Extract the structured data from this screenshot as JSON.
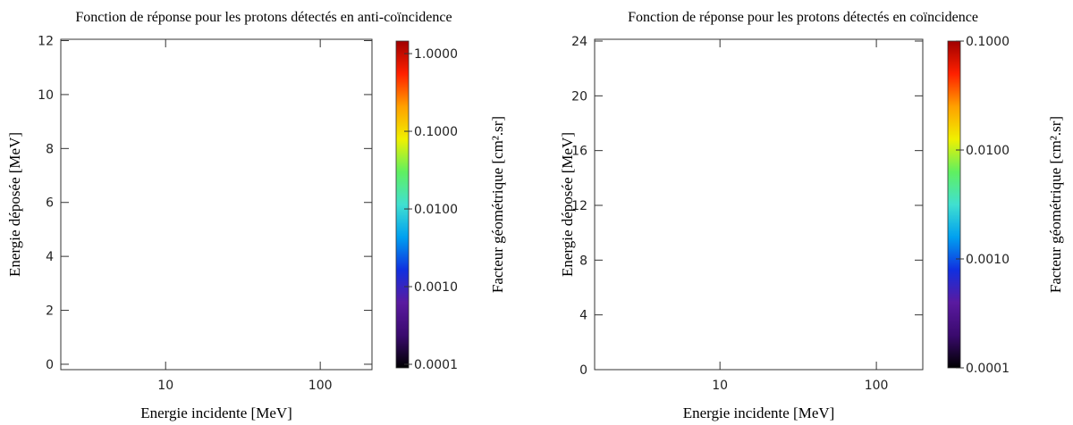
{
  "chart_data": [
    {
      "type": "heatmap",
      "title": "Fonction de réponse pour les protons détectés en anti-coïncidence",
      "x_label": "Energie incidente [MeV]",
      "y_label": "Energie déposée [MeV]",
      "colorbar_label": "Facteur géométrique [cm².sr]",
      "x_log": true,
      "xlim": [
        2.1,
        216
      ],
      "xticks": [
        10,
        100
      ],
      "ylim": [
        -0.2,
        12.05
      ],
      "yticks": [
        0,
        2,
        4,
        6,
        8,
        10,
        12
      ],
      "color_log": true,
      "clim": [
        9e-05,
        1.45
      ],
      "cticks": [
        {
          "value": 1,
          "label": "1.0000"
        },
        {
          "value": 0.1,
          "label": "0.1000"
        },
        {
          "value": 0.01,
          "label": "0.0100"
        },
        {
          "value": 0.001,
          "label": "0.0010"
        },
        {
          "value": 0.0001,
          "label": "0.0001"
        }
      ],
      "colormap": [
        "#000000",
        "#3a0a6e",
        "#5a1aa0",
        "#1030e0",
        "#00a0f0",
        "#40e0d0",
        "#60f060",
        "#f0f000",
        "#ffa000",
        "#ff2000",
        "#a00000"
      ]
    },
    {
      "type": "heatmap",
      "title": "Fonction de réponse pour les protons détectés en coïncidence",
      "x_label": "Energie incidente [MeV]",
      "y_label": "Energie déposée [MeV]",
      "colorbar_label": "Facteur géométrique [cm².sr]",
      "x_log": true,
      "xlim": [
        1.58,
        198
      ],
      "xticks": [
        10,
        100
      ],
      "ylim": [
        0,
        24.13
      ],
      "yticks": [
        0,
        4,
        8,
        12,
        16,
        20,
        24
      ],
      "color_log": true,
      "clim": [
        0.0001,
        0.1
      ],
      "cticks": [
        {
          "value": 0.1,
          "label": "0.1000"
        },
        {
          "value": 0.01,
          "label": "0.0100"
        },
        {
          "value": 0.001,
          "label": "0.0010"
        },
        {
          "value": 0.0001,
          "label": "0.0001"
        }
      ],
      "colormap": [
        "#000000",
        "#3a0a6e",
        "#5a1aa0",
        "#1030e0",
        "#00a0f0",
        "#40e0d0",
        "#60f060",
        "#f0f000",
        "#ffa000",
        "#ff2000",
        "#a00000"
      ]
    }
  ]
}
